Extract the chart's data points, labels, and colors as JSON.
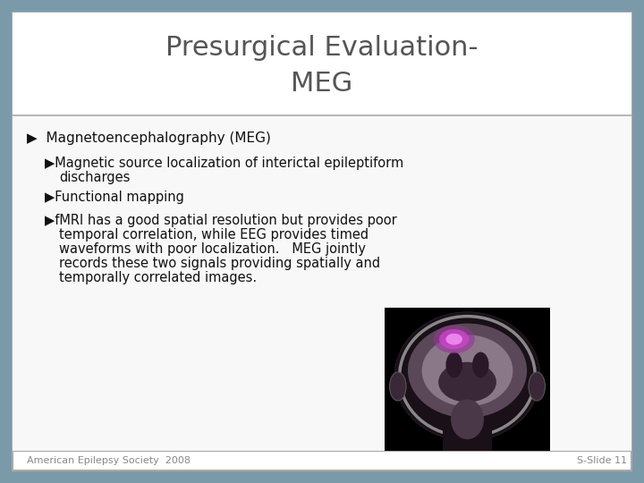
{
  "title_line1": "Presurgical Evaluation-",
  "title_line2": "MEG",
  "title_color": "#555555",
  "title_fontsize": 22,
  "background_outer": "#7a9aaa",
  "background_slide": "#ffffff",
  "title_bg": "#ffffff",
  "content_bg": "#ffffff",
  "border_color": "#aaaaaa",
  "footer_left": "American Epilepsy Society  2008",
  "footer_right": "S-Slide 11",
  "footer_fontsize": 8,
  "footer_color": "#888888",
  "text_color": "#111111",
  "body_fontsize": 10.5
}
